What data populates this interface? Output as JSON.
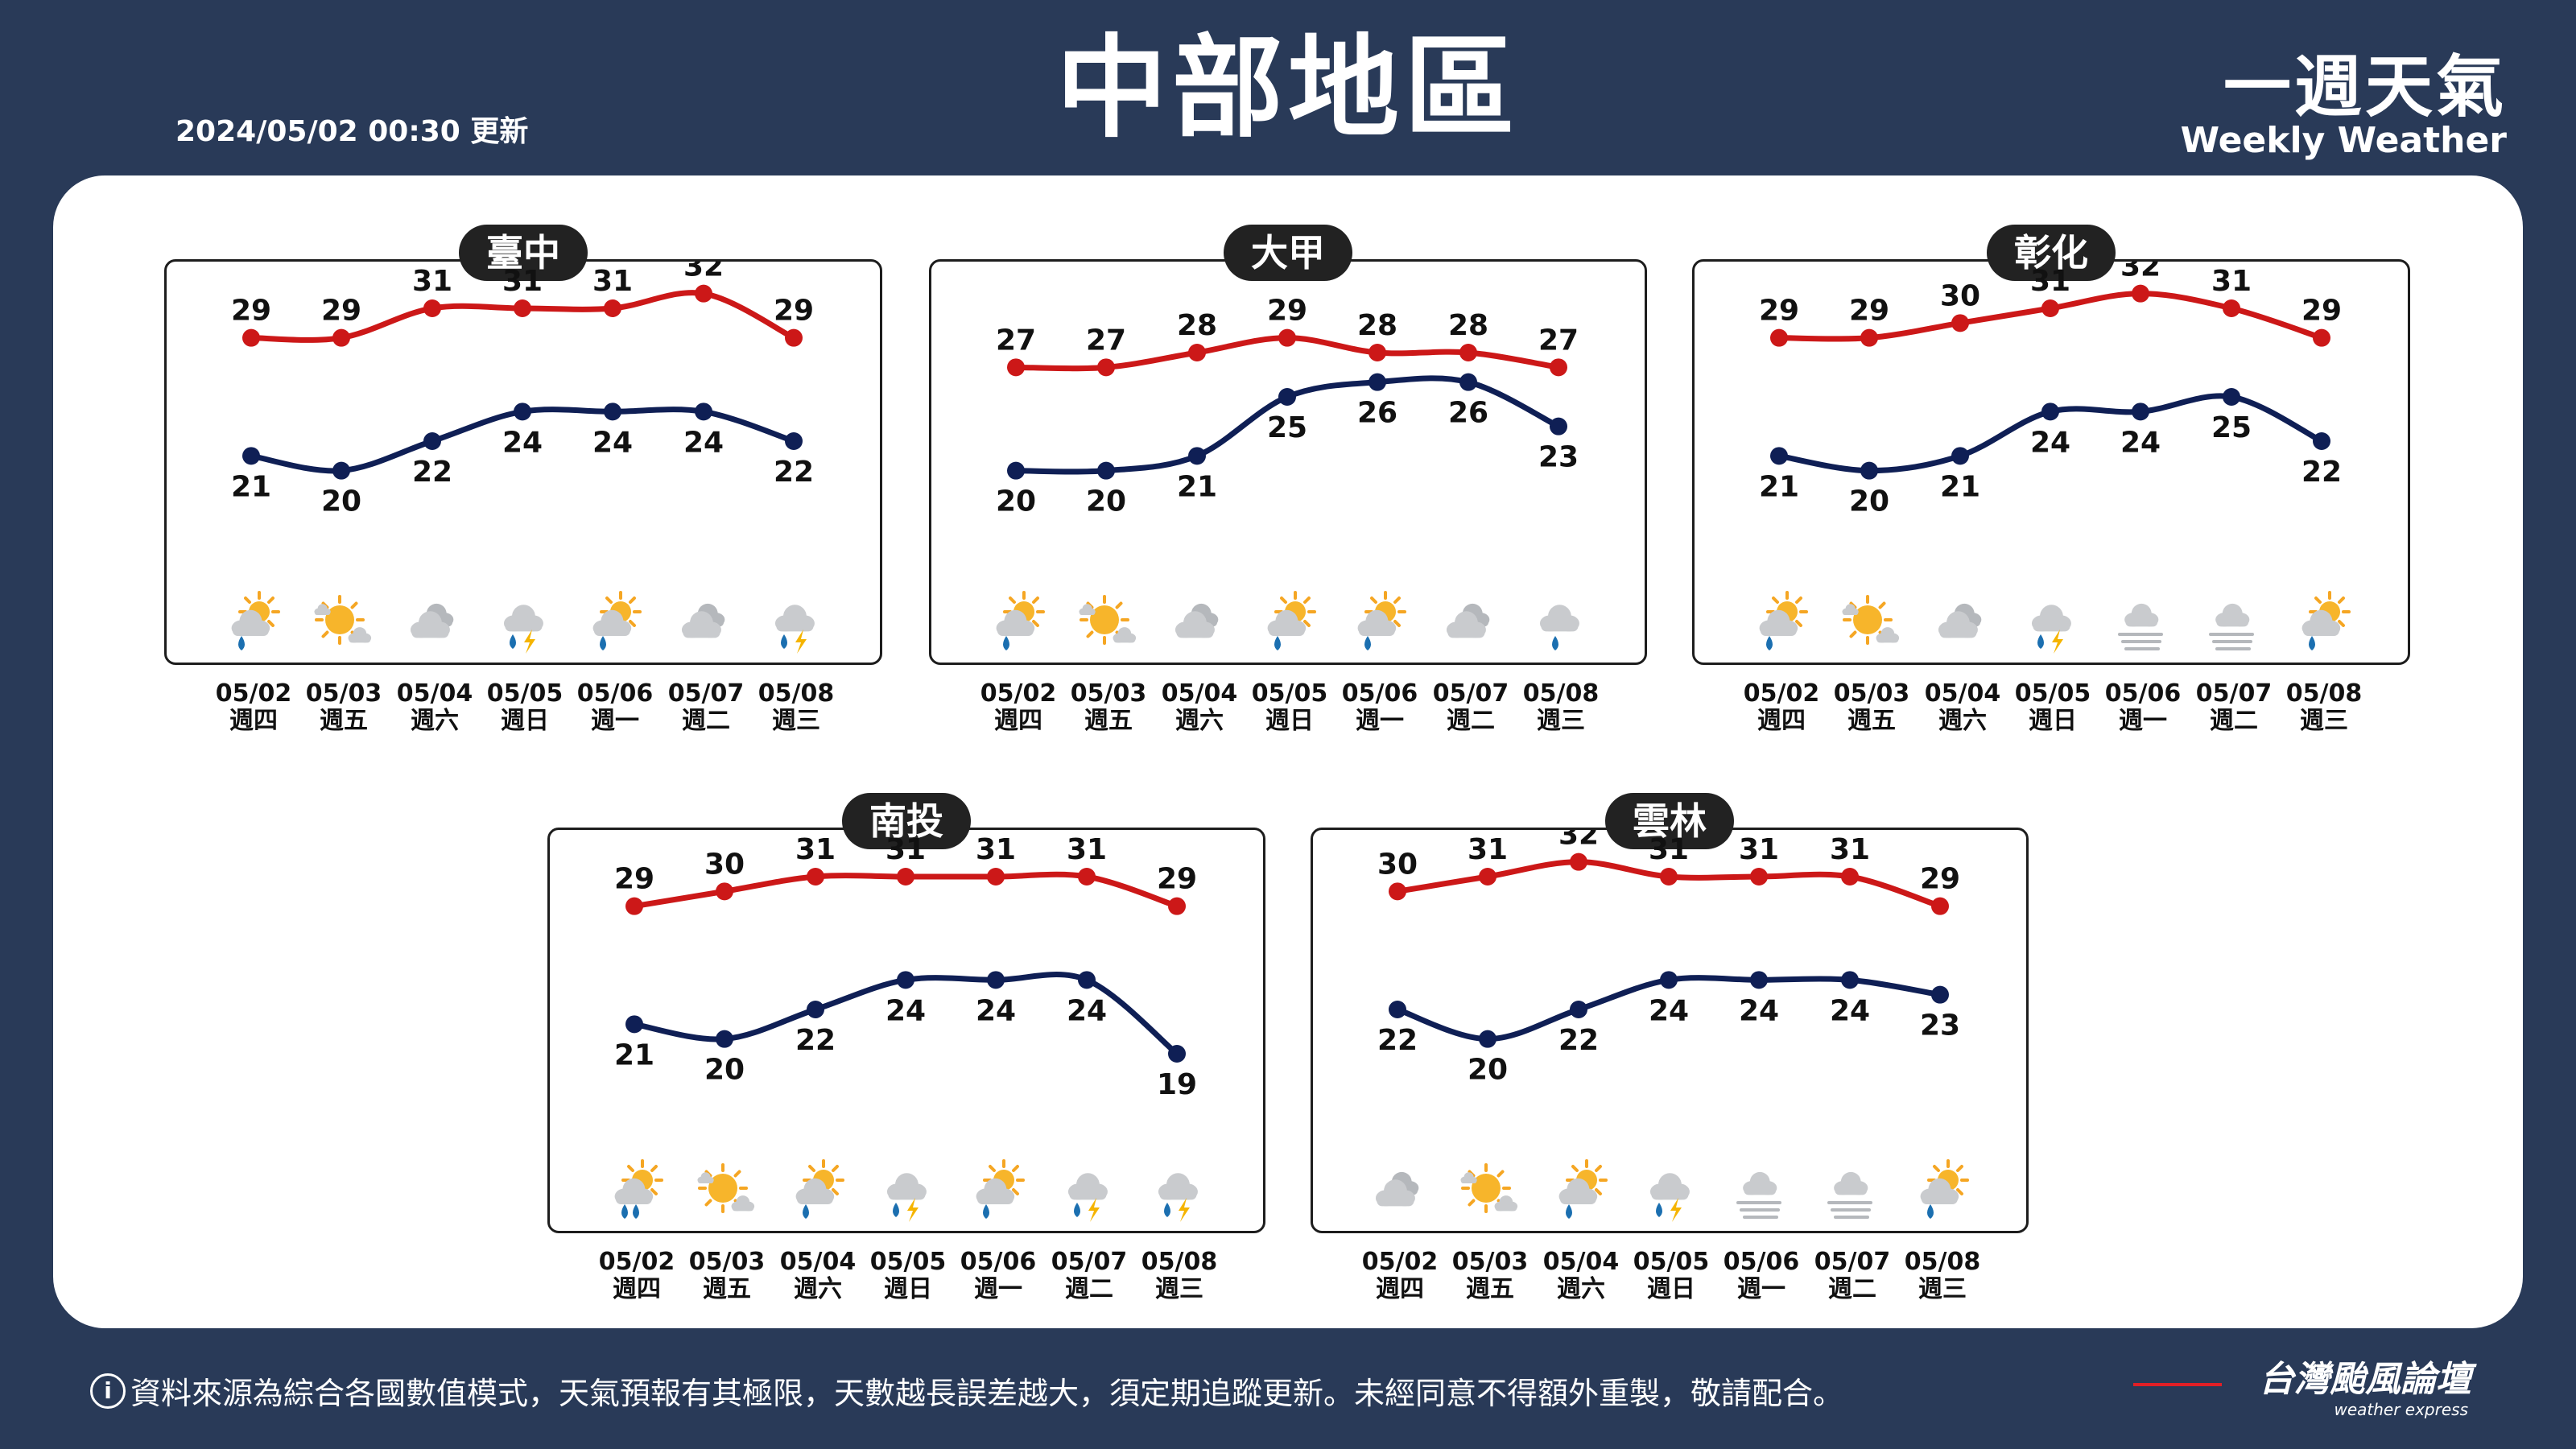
{
  "header": {
    "title": "中部地區",
    "updated": "2024/05/02 00:30 更新",
    "brand_zh": "一週天氣",
    "brand_en": "Weekly Weather"
  },
  "footer": {
    "note": "資料來源為綜合各國數值模式，天氣預報有其極限，天數越長誤差越大，須定期追蹤更新。未經同意不得額外重製，敬請配合。",
    "logo_zh": "台灣颱風論壇",
    "logo_en": "weather express"
  },
  "colors": {
    "background": "#293a58",
    "high_line": "#cc1818",
    "low_line": "#0f1f55",
    "panel": "#ffffff",
    "station_pill": "#222222"
  },
  "days": [
    {
      "date": "05/02",
      "weekday": "週四"
    },
    {
      "date": "05/03",
      "weekday": "週五"
    },
    {
      "date": "05/04",
      "weekday": "週六"
    },
    {
      "date": "05/05",
      "weekday": "週日"
    },
    {
      "date": "05/06",
      "weekday": "週一"
    },
    {
      "date": "05/07",
      "weekday": "週二"
    },
    {
      "date": "05/08",
      "weekday": "週三"
    }
  ],
  "chart_data": [
    {
      "type": "line",
      "station": "臺中",
      "categories": [
        "05/02",
        "05/03",
        "05/04",
        "05/05",
        "05/06",
        "05/07",
        "05/08"
      ],
      "series": [
        {
          "values": [
            29,
            29,
            31,
            31,
            31,
            32,
            29
          ]
        },
        {
          "values": [
            21,
            20,
            22,
            24,
            24,
            24,
            22
          ]
        }
      ],
      "icons": [
        "partly-cloudy-rain-icon",
        "sunny-cloud-icon",
        "cloudy-icon",
        "thunderstorm-icon",
        "partly-cloudy-rain-icon",
        "cloudy-icon",
        "thunderstorm-icon"
      ]
    },
    {
      "type": "line",
      "station": "大甲",
      "categories": [
        "05/02",
        "05/03",
        "05/04",
        "05/05",
        "05/06",
        "05/07",
        "05/08"
      ],
      "series": [
        {
          "values": [
            27,
            27,
            28,
            29,
            28,
            28,
            27
          ]
        },
        {
          "values": [
            20,
            20,
            21,
            25,
            26,
            26,
            23
          ]
        }
      ],
      "icons": [
        "partly-cloudy-rain-icon",
        "sunny-cloud-icon",
        "cloudy-icon",
        "partly-cloudy-rain-icon",
        "partly-cloudy-rain-icon",
        "cloudy-icon",
        "rain-icon"
      ]
    },
    {
      "type": "line",
      "station": "彰化",
      "categories": [
        "05/02",
        "05/03",
        "05/04",
        "05/05",
        "05/06",
        "05/07",
        "05/08"
      ],
      "series": [
        {
          "values": [
            29,
            29,
            30,
            31,
            32,
            31,
            29
          ]
        },
        {
          "values": [
            21,
            20,
            21,
            24,
            24,
            25,
            22
          ]
        }
      ],
      "icons": [
        "partly-cloudy-rain-icon",
        "sunny-cloud-icon",
        "cloudy-icon",
        "thunderstorm-icon",
        "fog-icon",
        "fog-icon",
        "partly-cloudy-rain-icon"
      ]
    },
    {
      "type": "line",
      "station": "南投",
      "categories": [
        "05/02",
        "05/03",
        "05/04",
        "05/05",
        "05/06",
        "05/07",
        "05/08"
      ],
      "series": [
        {
          "values": [
            29,
            30,
            31,
            31,
            31,
            31,
            29
          ]
        },
        {
          "values": [
            21,
            20,
            22,
            24,
            24,
            24,
            19
          ]
        }
      ],
      "icons": [
        "partly-cloudy-heavy-rain-icon",
        "sunny-cloud-icon",
        "partly-cloudy-rain-icon",
        "thunderstorm-icon",
        "partly-cloudy-rain-icon",
        "thunderstorm-icon",
        "thunderstorm-icon"
      ]
    },
    {
      "type": "line",
      "station": "雲林",
      "categories": [
        "05/02",
        "05/03",
        "05/04",
        "05/05",
        "05/06",
        "05/07",
        "05/08"
      ],
      "series": [
        {
          "values": [
            30,
            31,
            32,
            31,
            31,
            31,
            29
          ]
        },
        {
          "values": [
            22,
            20,
            22,
            24,
            24,
            24,
            23
          ]
        }
      ],
      "icons": [
        "cloudy-icon",
        "sunny-cloud-icon",
        "partly-cloudy-rain-icon",
        "thunderstorm-icon",
        "fog-icon",
        "fog-icon",
        "partly-cloudy-rain-icon"
      ]
    }
  ]
}
